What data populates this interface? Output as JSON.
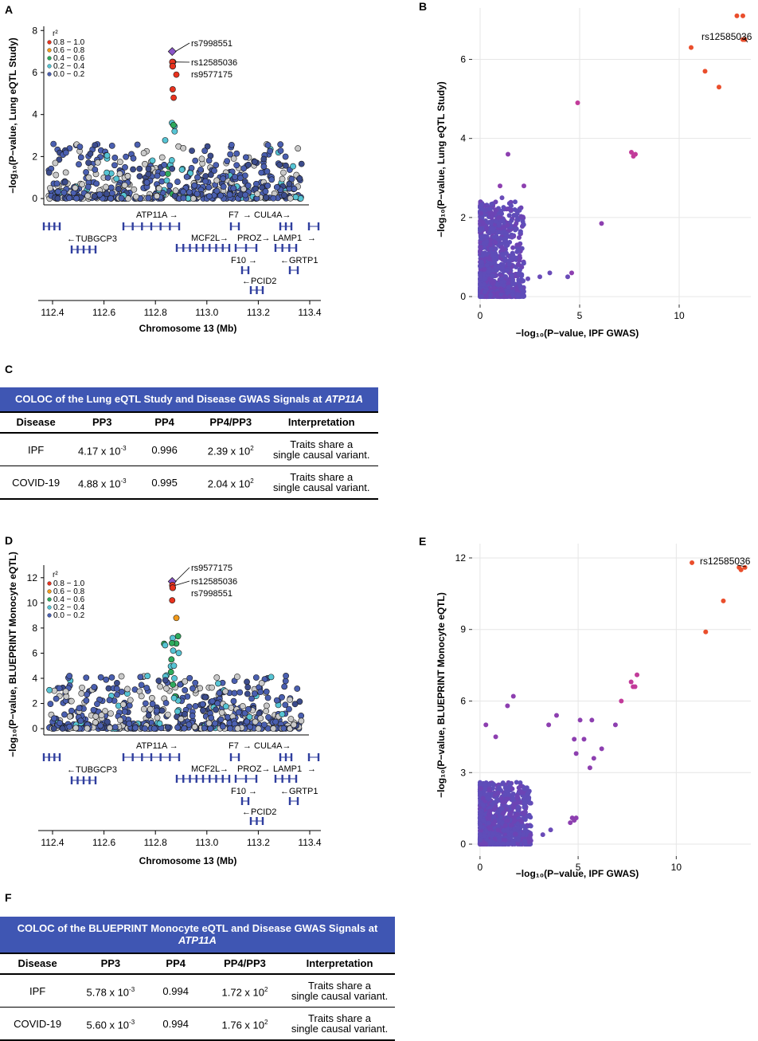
{
  "panels": {
    "A": {
      "letter": "A",
      "ylabel": "−log₁₀(P−value, Lung eQTL Study)",
      "xlabel": "Chromosome 13 (Mb)",
      "yticks": [
        "0",
        "2",
        "4",
        "6",
        "8"
      ],
      "xticks": [
        "112.4",
        "112.6",
        "112.8",
        "113.0",
        "113.2",
        "113.4"
      ],
      "legend_title": "r²",
      "legend": [
        "0.8 − 1.0",
        "0.6 − 0.8",
        "0.4 − 0.6",
        "0.2 − 0.4",
        "0.0 − 0.2"
      ],
      "snps": [
        "rs7998551",
        "rs12585036",
        "rs9577175"
      ]
    },
    "B": {
      "letter": "B",
      "ylabel": "−log₁₀(P−value, Lung eQTL Study)",
      "xlabel": "−log₁₀(P−value, IPF GWAS)",
      "yticks": [
        "0",
        "2",
        "4",
        "6"
      ],
      "xticks": [
        "0",
        "5",
        "10"
      ],
      "annotation": "rs12585036"
    },
    "C": {
      "letter": "C",
      "title_main": "COLOC of the Lung eQTL Study and Disease GWAS Signals at ",
      "title_gene": "ATP11A",
      "headers": [
        "Disease",
        "PP3",
        "PP4",
        "PP4/PP3",
        "Interpretation"
      ],
      "rows": [
        {
          "disease": "IPF",
          "pp3_base": "4.17 x 10",
          "pp3_exp": "-3",
          "pp4": "0.996",
          "ratio_base": "2.39 x 10",
          "ratio_exp": "2",
          "interp1": "Traits share a",
          "interp2": "single causal variant."
        },
        {
          "disease": "COVID-19",
          "pp3_base": "4.88 x 10",
          "pp3_exp": "-3",
          "pp4": "0.995",
          "ratio_base": "2.04 x 10",
          "ratio_exp": "2",
          "interp1": "Traits share a",
          "interp2": "single causal variant."
        }
      ]
    },
    "D": {
      "letter": "D",
      "ylabel": "−log₁₀(P−value, BLUEPRINT Monocyte eQTL)",
      "xlabel": "Chromosome 13 (Mb)",
      "yticks": [
        "0",
        "2",
        "4",
        "6",
        "8",
        "10",
        "12"
      ],
      "xticks": [
        "112.4",
        "112.6",
        "112.8",
        "113.0",
        "113.2",
        "113.4"
      ],
      "legend_title": "r²",
      "legend": [
        "0.8 − 1.0",
        "0.6 − 0.8",
        "0.4 − 0.6",
        "0.2 − 0.4",
        "0.0 − 0.2"
      ],
      "snps": [
        "rs9577175",
        "rs12585036",
        "rs7998551"
      ]
    },
    "E": {
      "letter": "E",
      "ylabel": "−log₁₀(P−value, BLUEPRINT Monocyte eQTL)",
      "xlabel": "−log₁₀(P−value, IPF GWAS)",
      "yticks": [
        "0",
        "3",
        "6",
        "9",
        "12"
      ],
      "xticks": [
        "0",
        "5",
        "10"
      ],
      "annotation": "rs12585036"
    },
    "F": {
      "letter": "F",
      "title_main": "COLOC of the BLUEPRINT Monocyte eQTL and Disease GWAS Signals at ",
      "title_gene": "ATP11A",
      "headers": [
        "Disease",
        "PP3",
        "PP4",
        "PP4/PP3",
        "Interpretation"
      ],
      "rows": [
        {
          "disease": "IPF",
          "pp3_base": "5.78 x 10",
          "pp3_exp": "-3",
          "pp4": "0.994",
          "ratio_base": "1.72 x 10",
          "ratio_exp": "2",
          "interp1": "Traits share a",
          "interp2": "single causal variant."
        },
        {
          "disease": "COVID-19",
          "pp3_base": "5.60 x 10",
          "pp3_exp": "-3",
          "pp4": "0.994",
          "ratio_base": "1.76 x 10",
          "ratio_exp": "2",
          "interp1": "Traits share a",
          "interp2": "single causal variant."
        }
      ]
    }
  },
  "genes": {
    "labels": [
      "ATP11A →",
      "F7",
      "→ CUL4A→",
      "←TUBGCP3",
      "MCF2L→",
      "PROZ→",
      "LAMP1",
      "→",
      "F10 →",
      "←GRTP1",
      "←PCID2"
    ]
  },
  "colors": {
    "r2_08_10": "#e8321e",
    "r2_06_08": "#f19a1a",
    "r2_04_06": "#2daa5c",
    "r2_02_04": "#56c4d4",
    "r2_00_02": "#4a5fb0",
    "low_gray": "#c9c9c9",
    "lead_snp": "#8a55c8",
    "banner": "#3f56b3",
    "gene": "#2f3e9e"
  },
  "chart_data": [
    {
      "panel": "A",
      "type": "scatter",
      "title": "",
      "xlabel": "Chromosome 13 (Mb)",
      "ylabel": "−log10(P−value, Lung eQTL Study)",
      "xlim": [
        112.36,
        113.44
      ],
      "ylim": [
        -0.3,
        8.2
      ],
      "highlights": [
        {
          "name": "rs7998551",
          "x": 112.883,
          "y": 7.0
        },
        {
          "name": "rs12585036",
          "x": 112.884,
          "y": 6.5
        },
        {
          "name": "rs9577175",
          "x": 112.885,
          "y": 6.3
        }
      ],
      "peak_points": [
        {
          "x": 112.887,
          "y": 6.5
        },
        {
          "x": 112.9,
          "y": 5.9
        },
        {
          "x": 112.885,
          "y": 5.2
        },
        {
          "x": 112.889,
          "y": 4.8
        },
        {
          "x": 112.882,
          "y": 3.6
        },
        {
          "x": 112.888,
          "y": 3.5
        },
        {
          "x": 112.893,
          "y": 3.2
        }
      ],
      "background": "~550 variants, -log10 p between 0 and 2.6 across 112.38–113.40 Mb"
    },
    {
      "panel": "B",
      "type": "scatter",
      "xlabel": "−log10(P−value, IPF GWAS)",
      "ylabel": "−log10(P−value, Lung eQTL Study)",
      "xlim": [
        -0.4,
        13.6
      ],
      "ylim": [
        -0.2,
        7.3
      ],
      "points": [
        {
          "x": 12.9,
          "y": 7.1
        },
        {
          "x": 13.2,
          "y": 7.1
        },
        {
          "x": 13.3,
          "y": 6.5
        },
        {
          "x": 13.2,
          "y": 6.5
        },
        {
          "x": 10.6,
          "y": 6.3
        },
        {
          "x": 11.3,
          "y": 5.7
        },
        {
          "x": 12.0,
          "y": 5.3
        },
        {
          "x": 4.9,
          "y": 4.9
        },
        {
          "x": 7.6,
          "y": 3.65
        },
        {
          "x": 7.8,
          "y": 3.6
        },
        {
          "x": 7.7,
          "y": 3.55
        },
        {
          "x": 6.1,
          "y": 1.85
        },
        {
          "x": 1.4,
          "y": 3.6
        },
        {
          "x": 2.2,
          "y": 2.8
        },
        {
          "x": 1.0,
          "y": 2.8
        },
        {
          "x": 1.1,
          "y": 2.5
        },
        {
          "x": 1.6,
          "y": 1.5
        },
        {
          "x": 4.6,
          "y": 0.6
        },
        {
          "x": 4.4,
          "y": 0.5
        },
        {
          "x": 3.0,
          "y": 0.5
        },
        {
          "x": 3.5,
          "y": 0.6
        },
        {
          "x": 2.4,
          "y": 0.45
        }
      ],
      "annotation": "rs12585036",
      "background": "dense cloud of ~1500 variants at x 0–2, y 0–2.5"
    },
    {
      "panel": "D",
      "type": "scatter",
      "title": "",
      "xlabel": "Chromosome 13 (Mb)",
      "ylabel": "−log10(P−value, BLUEPRINT Monocyte eQTL)",
      "xlim": [
        112.36,
        113.44
      ],
      "ylim": [
        -0.5,
        13.0
      ],
      "highlights": [
        {
          "name": "rs9577175",
          "x": 112.883,
          "y": 11.7
        },
        {
          "name": "rs12585036",
          "x": 112.884,
          "y": 11.4
        },
        {
          "name": "rs7998551",
          "x": 112.885,
          "y": 11.2
        }
      ],
      "peak_points": [
        {
          "x": 112.883,
          "y": 10.2
        },
        {
          "x": 112.9,
          "y": 8.8
        },
        {
          "x": 112.885,
          "y": 7.2
        },
        {
          "x": 112.882,
          "y": 6.8
        },
        {
          "x": 112.887,
          "y": 6.2
        },
        {
          "x": 112.88,
          "y": 5.5
        },
        {
          "x": 112.89,
          "y": 5.0
        },
        {
          "x": 112.878,
          "y": 4.5
        },
        {
          "x": 112.892,
          "y": 4.0
        },
        {
          "x": 112.886,
          "y": 3.5
        }
      ],
      "background": "~600 variants, -log10 p between 0 and 4.5 across 112.38–113.40 Mb"
    },
    {
      "panel": "E",
      "type": "scatter",
      "xlabel": "−log10(P−value, IPF GWAS)",
      "ylabel": "−log10(P−value, BLUEPRINT Monocyte eQTL)",
      "xlim": [
        -0.4,
        13.8
      ],
      "ylim": [
        -0.5,
        12.6
      ],
      "points": [
        {
          "x": 13.2,
          "y": 11.6
        },
        {
          "x": 13.5,
          "y": 11.6
        },
        {
          "x": 13.3,
          "y": 11.5
        },
        {
          "x": 10.8,
          "y": 11.8
        },
        {
          "x": 12.4,
          "y": 10.2
        },
        {
          "x": 11.5,
          "y": 8.9
        },
        {
          "x": 8.0,
          "y": 7.1
        },
        {
          "x": 7.7,
          "y": 6.8
        },
        {
          "x": 7.8,
          "y": 6.6
        },
        {
          "x": 7.9,
          "y": 6.6
        },
        {
          "x": 7.2,
          "y": 6.0
        },
        {
          "x": 6.9,
          "y": 5.0
        },
        {
          "x": 5.1,
          "y": 5.2
        },
        {
          "x": 5.7,
          "y": 5.2
        },
        {
          "x": 5.3,
          "y": 4.4
        },
        {
          "x": 4.8,
          "y": 4.4
        },
        {
          "x": 6.2,
          "y": 4.0
        },
        {
          "x": 5.8,
          "y": 3.6
        },
        {
          "x": 5.6,
          "y": 3.2
        },
        {
          "x": 4.9,
          "y": 3.8
        },
        {
          "x": 3.5,
          "y": 5.0
        },
        {
          "x": 3.9,
          "y": 5.4
        },
        {
          "x": 1.7,
          "y": 6.2
        },
        {
          "x": 1.4,
          "y": 5.8
        },
        {
          "x": 0.3,
          "y": 5.0
        },
        {
          "x": 0.8,
          "y": 4.5
        },
        {
          "x": 4.7,
          "y": 1.1
        },
        {
          "x": 4.8,
          "y": 1.0
        },
        {
          "x": 4.6,
          "y": 0.9
        },
        {
          "x": 4.9,
          "y": 1.1
        },
        {
          "x": 3.6,
          "y": 0.6
        },
        {
          "x": 3.2,
          "y": 0.4
        }
      ],
      "annotation": "rs12585036",
      "background": "dense cloud of ~1500 variants at x 0–2.5, y 0–2.5"
    }
  ]
}
